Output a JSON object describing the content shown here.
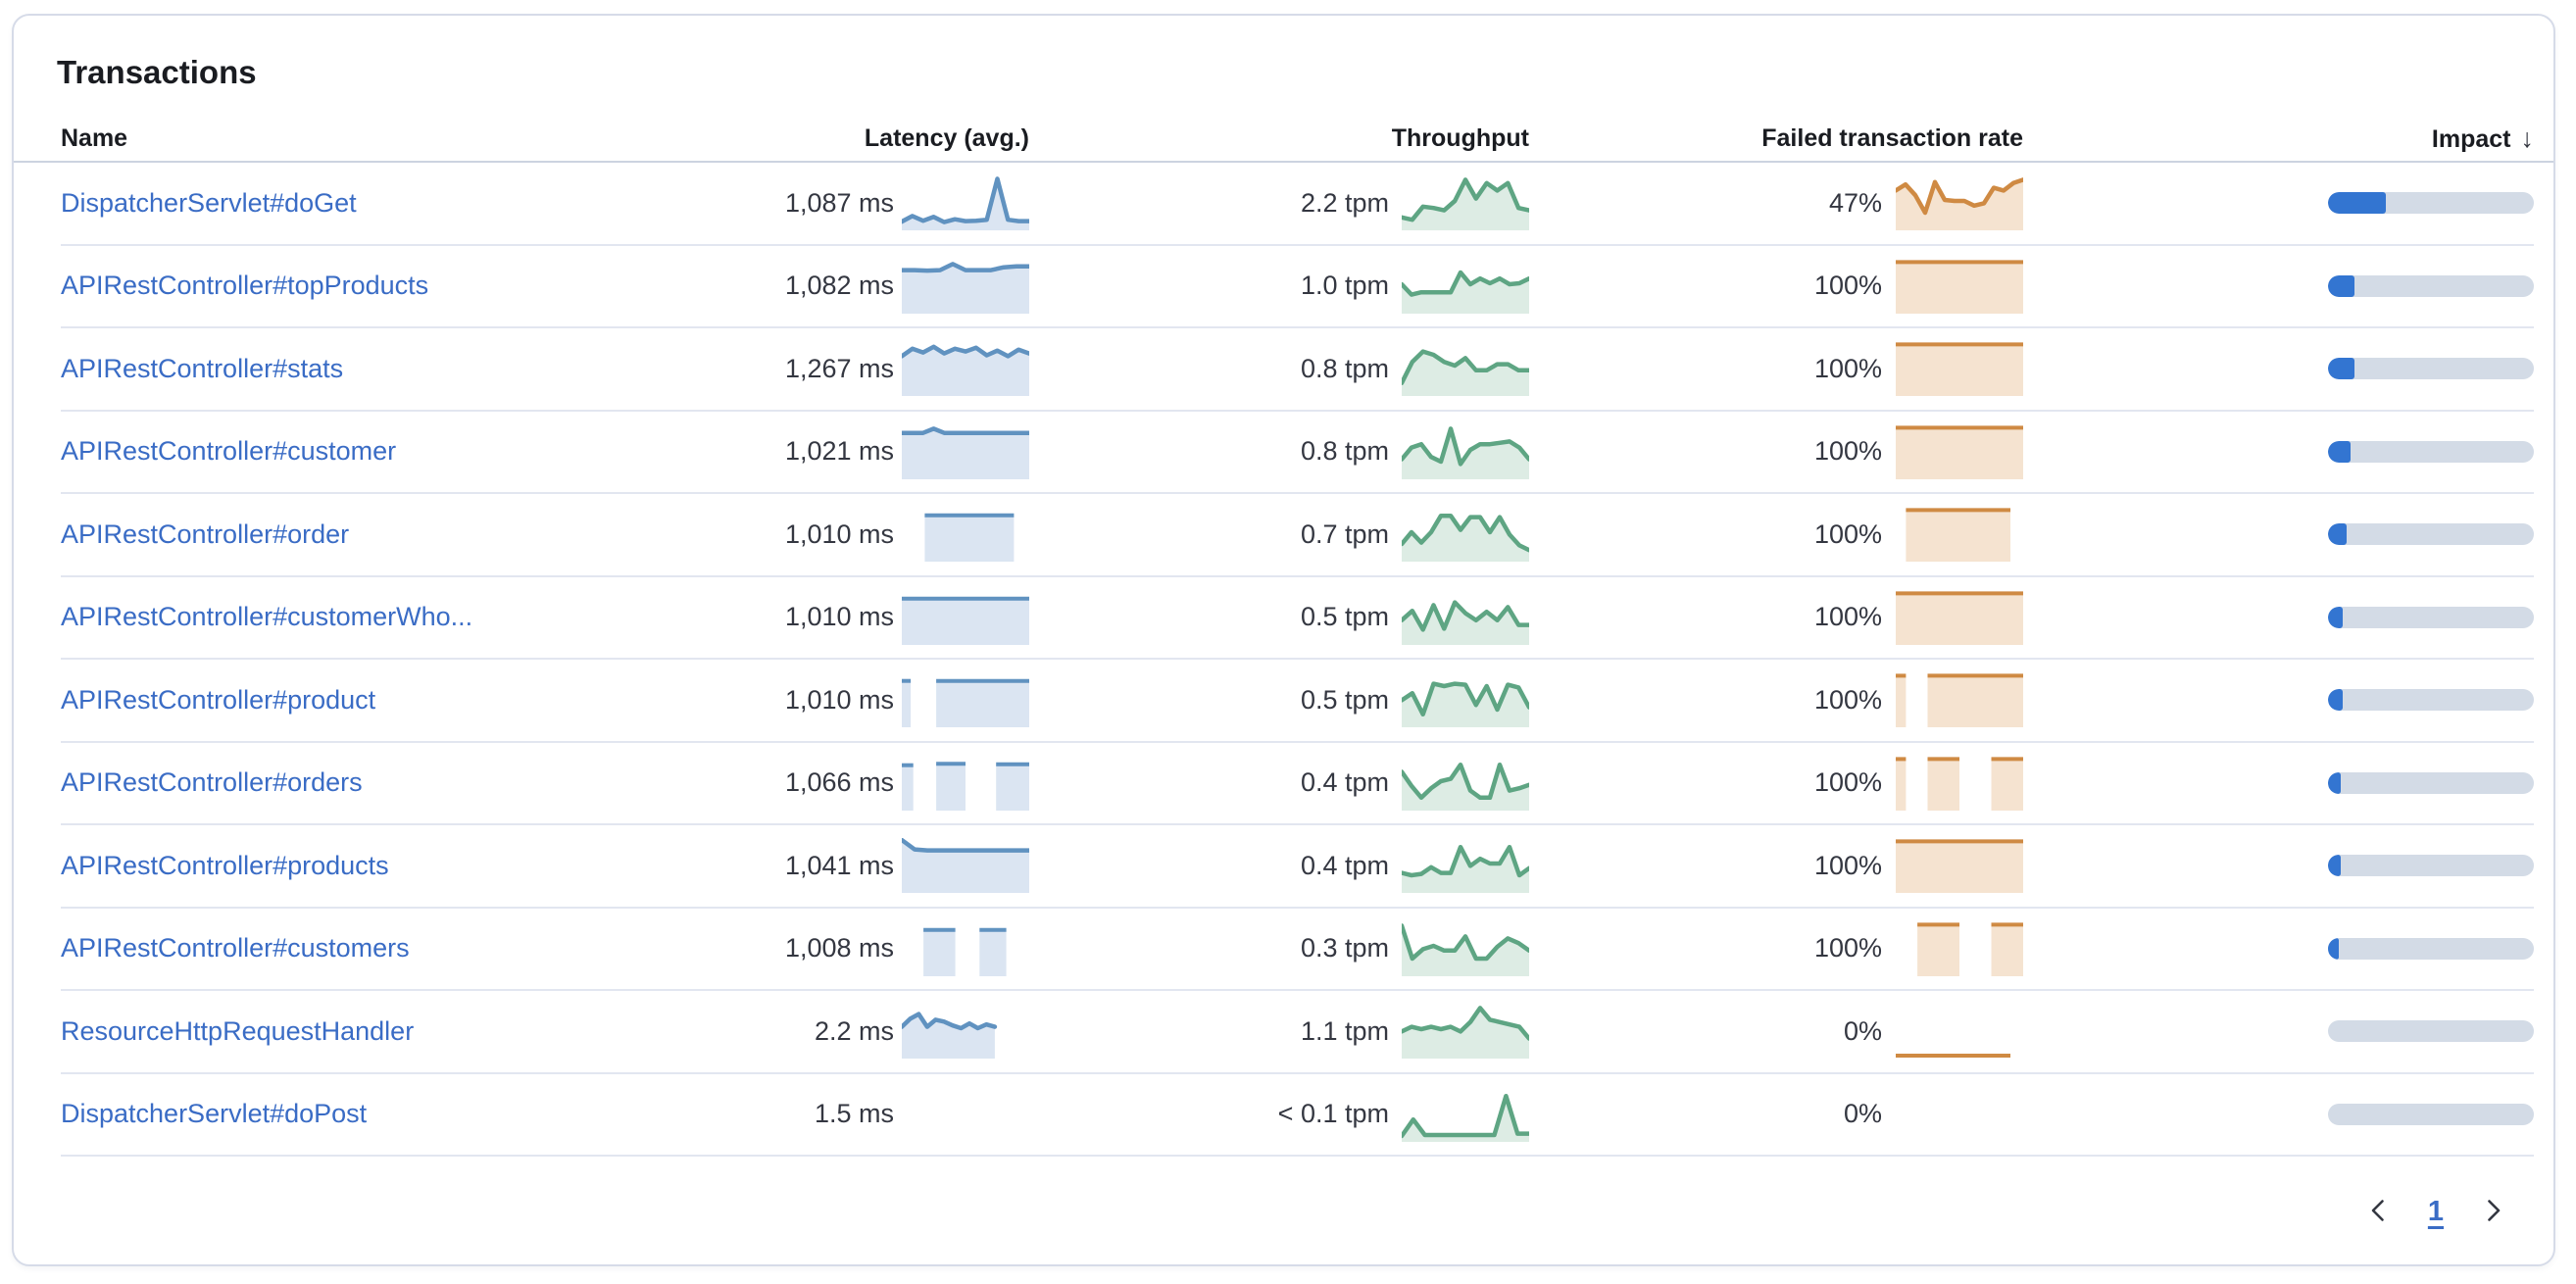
{
  "panel": {
    "title": "Transactions"
  },
  "table": {
    "columns": {
      "name": "Name",
      "latency": "Latency (avg.)",
      "throughput": "Throughput",
      "failed": "Failed transaction rate",
      "impact": "Impact"
    },
    "sort_icon": "↓",
    "rows": [
      {
        "name": "DispatcherServlet#doGet",
        "latency": "1,087 ms",
        "throughput": "2.2 tpm",
        "failed": "47%",
        "impact_pct": 28,
        "latency_spark": {
          "t": "line",
          "p": [
            0.06,
            0.18,
            0.08,
            0.16,
            0.05,
            0.11,
            0.07,
            0.08,
            0.1,
            0.97,
            0.1,
            0.07,
            0.07
          ]
        },
        "throughput_spark": {
          "t": "line",
          "p": [
            0.15,
            0.1,
            0.38,
            0.35,
            0.3,
            0.5,
            0.95,
            0.55,
            0.88,
            0.72,
            0.88,
            0.35,
            0.3
          ]
        },
        "failed_spark": {
          "t": "line",
          "p": [
            0.72,
            0.85,
            0.62,
            0.25,
            0.9,
            0.52,
            0.5,
            0.5,
            0.4,
            0.45,
            0.78,
            0.72,
            0.88,
            0.95
          ]
        }
      },
      {
        "name": "APIRestController#topProducts",
        "latency": "1,082 ms",
        "throughput": "1.0 tpm",
        "failed": "100%",
        "impact_pct": 13,
        "latency_spark": {
          "t": "line",
          "p": [
            0.8,
            0.8,
            0.79,
            0.8,
            0.93,
            0.8,
            0.8,
            0.8,
            0.86,
            0.88,
            0.88
          ]
        },
        "throughput_spark": {
          "t": "line",
          "p": [
            0.5,
            0.28,
            0.33,
            0.33,
            0.33,
            0.33,
            0.75,
            0.5,
            0.62,
            0.52,
            0.62,
            0.5,
            0.52,
            0.62
          ]
        },
        "failed_spark": {
          "t": "seg",
          "s": [
            {
              "x0": 0,
              "x1": 1,
              "v": 0.97
            }
          ]
        }
      },
      {
        "name": "APIRestController#stats",
        "latency": "1,267 ms",
        "throughput": "0.8 tpm",
        "failed": "100%",
        "impact_pct": 13,
        "latency_spark": {
          "t": "line",
          "p": [
            0.72,
            0.88,
            0.8,
            0.92,
            0.78,
            0.88,
            0.82,
            0.9,
            0.74,
            0.84,
            0.72,
            0.86,
            0.78
          ]
        },
        "throughput_spark": {
          "t": "line",
          "p": [
            0.15,
            0.6,
            0.82,
            0.75,
            0.6,
            0.52,
            0.68,
            0.42,
            0.42,
            0.55,
            0.55,
            0.42,
            0.42
          ]
        },
        "failed_spark": {
          "t": "seg",
          "s": [
            {
              "x0": 0,
              "x1": 1,
              "v": 0.97
            }
          ]
        }
      },
      {
        "name": "APIRestController#customer",
        "latency": "1,021 ms",
        "throughput": "0.8 tpm",
        "failed": "100%",
        "impact_pct": 11,
        "latency_spark": {
          "t": "line",
          "p": [
            0.86,
            0.86,
            0.86,
            0.95,
            0.86,
            0.86,
            0.86,
            0.86,
            0.86,
            0.86,
            0.86,
            0.86,
            0.86
          ]
        },
        "throughput_spark": {
          "t": "line",
          "p": [
            0.3,
            0.55,
            0.62,
            0.35,
            0.25,
            0.95,
            0.2,
            0.5,
            0.62,
            0.62,
            0.65,
            0.68,
            0.55,
            0.3
          ]
        },
        "failed_spark": {
          "t": "seg",
          "s": [
            {
              "x0": 0,
              "x1": 1,
              "v": 0.97
            }
          ]
        }
      },
      {
        "name": "APIRestController#order",
        "latency": "1,010 ms",
        "throughput": "0.7 tpm",
        "failed": "100%",
        "impact_pct": 9,
        "latency_spark": {
          "t": "seg",
          "s": [
            {
              "x0": 0.18,
              "x1": 0.88,
              "v": 0.86
            }
          ]
        },
        "throughput_spark": {
          "t": "line",
          "p": [
            0.25,
            0.5,
            0.28,
            0.5,
            0.85,
            0.85,
            0.55,
            0.82,
            0.82,
            0.5,
            0.82,
            0.45,
            0.22,
            0.12
          ]
        },
        "failed_spark": {
          "t": "seg",
          "s": [
            {
              "x0": 0.08,
              "x1": 0.9,
              "v": 0.97
            }
          ]
        }
      },
      {
        "name": "APIRestController#customerWho...",
        "latency": "1,010 ms",
        "throughput": "0.5 tpm",
        "failed": "100%",
        "impact_pct": 7,
        "latency_spark": {
          "t": "seg",
          "s": [
            {
              "x0": 0,
              "x1": 1,
              "v": 0.86
            }
          ]
        },
        "throughput_spark": {
          "t": "line",
          "p": [
            0.4,
            0.6,
            0.2,
            0.72,
            0.22,
            0.78,
            0.55,
            0.4,
            0.58,
            0.4,
            0.68,
            0.3,
            0.3
          ]
        },
        "failed_spark": {
          "t": "seg",
          "s": [
            {
              "x0": 0,
              "x1": 1,
              "v": 0.97
            }
          ]
        }
      },
      {
        "name": "APIRestController#product",
        "latency": "1,010 ms",
        "throughput": "0.5 tpm",
        "failed": "100%",
        "impact_pct": 7,
        "latency_spark": {
          "t": "seg",
          "s": [
            {
              "x0": 0,
              "x1": 0.07,
              "v": 0.86
            },
            {
              "x0": 0.27,
              "x1": 1,
              "v": 0.86
            }
          ]
        },
        "throughput_spark": {
          "t": "line",
          "p": [
            0.45,
            0.6,
            0.15,
            0.8,
            0.75,
            0.8,
            0.78,
            0.35,
            0.75,
            0.25,
            0.78,
            0.72,
            0.3
          ]
        },
        "failed_spark": {
          "t": "seg",
          "s": [
            {
              "x0": 0,
              "x1": 0.08,
              "v": 0.97
            },
            {
              "x0": 0.25,
              "x1": 1,
              "v": 0.97
            }
          ]
        }
      },
      {
        "name": "APIRestController#orders",
        "latency": "1,066 ms",
        "throughput": "0.4 tpm",
        "failed": "100%",
        "impact_pct": 6,
        "latency_spark": {
          "t": "seg",
          "s": [
            {
              "x0": 0,
              "x1": 0.09,
              "v": 0.84
            },
            {
              "x0": 0.27,
              "x1": 0.5,
              "v": 0.87
            },
            {
              "x0": 0.74,
              "x1": 1,
              "v": 0.86
            }
          ]
        },
        "throughput_spark": {
          "t": "line",
          "p": [
            0.7,
            0.4,
            0.15,
            0.35,
            0.5,
            0.55,
            0.85,
            0.3,
            0.15,
            0.15,
            0.85,
            0.3,
            0.35,
            0.42
          ]
        },
        "failed_spark": {
          "t": "seg",
          "s": [
            {
              "x0": 0,
              "x1": 0.08,
              "v": 0.97
            },
            {
              "x0": 0.25,
              "x1": 0.5,
              "v": 0.97
            },
            {
              "x0": 0.75,
              "x1": 1,
              "v": 0.97
            }
          ]
        }
      },
      {
        "name": "APIRestController#products",
        "latency": "1,041 ms",
        "throughput": "0.4 tpm",
        "failed": "100%",
        "impact_pct": 6,
        "latency_spark": {
          "t": "line",
          "p": [
            1.0,
            0.8,
            0.78,
            0.78,
            0.78,
            0.78,
            0.78,
            0.78,
            0.78,
            0.78,
            0.78
          ]
        },
        "throughput_spark": {
          "t": "line",
          "p": [
            0.3,
            0.25,
            0.28,
            0.42,
            0.3,
            0.3,
            0.85,
            0.45,
            0.6,
            0.5,
            0.5,
            0.85,
            0.25,
            0.4
          ]
        },
        "failed_spark": {
          "t": "seg",
          "s": [
            {
              "x0": 0,
              "x1": 1,
              "v": 0.97
            }
          ]
        }
      },
      {
        "name": "APIRestController#customers",
        "latency": "1,008 ms",
        "throughput": "0.3 tpm",
        "failed": "100%",
        "impact_pct": 5,
        "latency_spark": {
          "t": "seg",
          "s": [
            {
              "x0": 0.17,
              "x1": 0.42,
              "v": 0.86
            },
            {
              "x0": 0.61,
              "x1": 0.82,
              "v": 0.86
            }
          ]
        },
        "throughput_spark": {
          "t": "line",
          "p": [
            0.95,
            0.25,
            0.45,
            0.52,
            0.42,
            0.42,
            0.72,
            0.25,
            0.25,
            0.5,
            0.68,
            0.58,
            0.42
          ]
        },
        "failed_spark": {
          "t": "seg",
          "s": [
            {
              "x0": 0.17,
              "x1": 0.5,
              "v": 0.97
            },
            {
              "x0": 0.75,
              "x1": 1,
              "v": 0.97
            }
          ]
        }
      },
      {
        "name": "ResourceHttpRequestHandler",
        "latency": "2.2 ms",
        "throughput": "1.1 tpm",
        "failed": "0%",
        "impact_pct": 0,
        "latency_spark": {
          "t": "line",
          "span": [
            0,
            0.73
          ],
          "p": [
            0.55,
            0.72,
            0.82,
            0.55,
            0.7,
            0.66,
            0.58,
            0.52,
            0.62,
            0.52,
            0.6,
            0.55
          ]
        },
        "throughput_spark": {
          "t": "line",
          "p": [
            0.45,
            0.55,
            0.5,
            0.55,
            0.5,
            0.55,
            0.45,
            0.65,
            0.95,
            0.7,
            0.65,
            0.6,
            0.55,
            0.3
          ]
        },
        "failed_spark": {
          "t": "seg",
          "s": [
            {
              "x0": 0,
              "x1": 0.9,
              "v": 0
            }
          ]
        }
      },
      {
        "name": "DispatcherServlet#doPost",
        "latency": "1.5 ms",
        "throughput": "< 0.1 tpm",
        "failed": "0%",
        "impact_pct": 0,
        "latency_spark": {
          "t": "none"
        },
        "throughput_spark": {
          "t": "line",
          "p": [
            0.0,
            0.35,
            0.02,
            0.02,
            0.02,
            0.02,
            0.02,
            0.02,
            0.02,
            0.85,
            0.05,
            0.05
          ]
        },
        "failed_spark": {
          "t": "none"
        }
      }
    ]
  },
  "pagination": {
    "page": "1"
  },
  "colors": {
    "latency_line": "#6092c0",
    "latency_fill": "#dbe5f2",
    "throughput_line": "#5ea583",
    "throughput_fill": "#ddece4",
    "failed_line": "#cf8a43",
    "failed_fill": "#f5e3d0",
    "impact_fill": "#3375d1",
    "impact_track": "#d3dbe6",
    "link": "#3a6cc5"
  }
}
